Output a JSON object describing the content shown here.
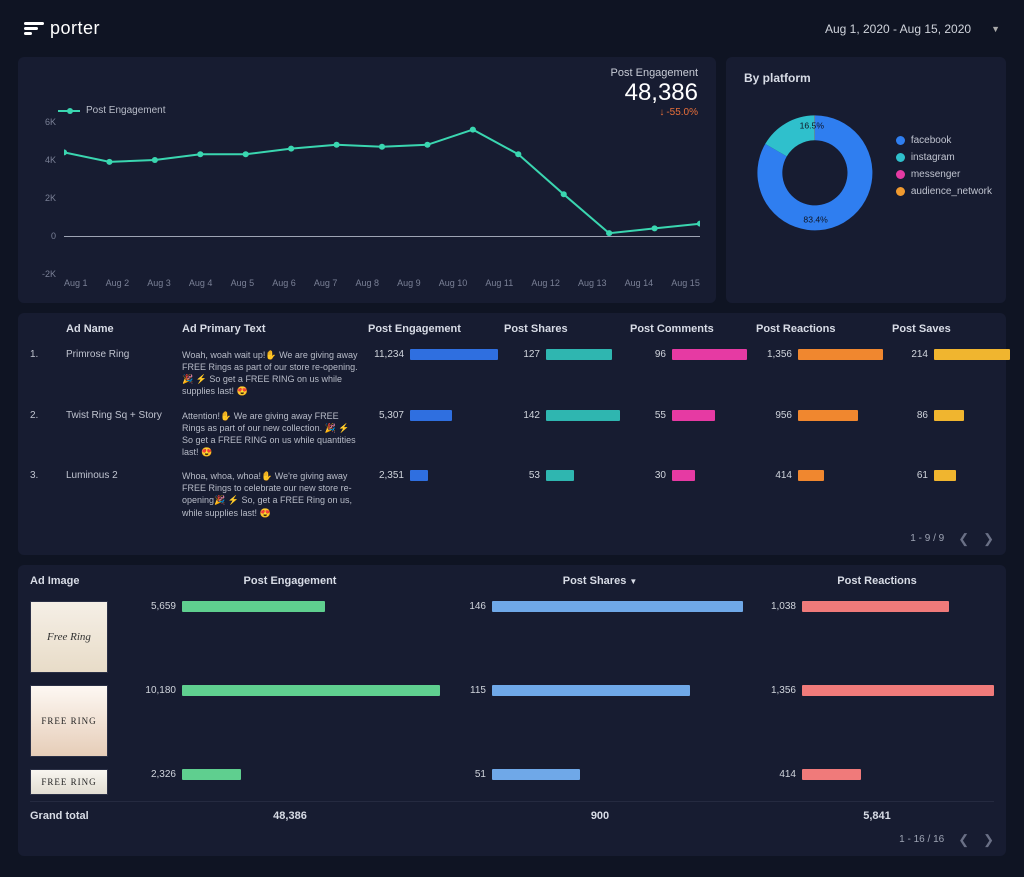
{
  "brand": {
    "name": "porter"
  },
  "header": {
    "date_range": "Aug 1, 2020 - Aug 15, 2020"
  },
  "colors": {
    "panel_bg": "#171c31",
    "body_bg": "#0f1423",
    "text_muted": "#7a8096",
    "line_series": "#3ad6b0",
    "delta_down": "#e86f3a"
  },
  "engagement_chart": {
    "type": "line",
    "title": "Post Engagement",
    "legend_label": "Post Engagement",
    "value": "48,386",
    "delta": "-55.0%",
    "delta_direction": "down",
    "y_ticks": [
      "-2K",
      "0",
      "2K",
      "4K",
      "6K"
    ],
    "y_min": -2000,
    "y_max": 6000,
    "x_labels": [
      "Aug 1",
      "Aug 2",
      "Aug 3",
      "Aug 4",
      "Aug 5",
      "Aug 6",
      "Aug 7",
      "Aug 8",
      "Aug 9",
      "Aug 10",
      "Aug 11",
      "Aug 12",
      "Aug 13",
      "Aug 14",
      "Aug 15"
    ],
    "values": [
      4400,
      3900,
      4000,
      4300,
      4300,
      4600,
      4800,
      4700,
      4800,
      5600,
      4300,
      2200,
      150,
      400,
      650
    ],
    "line_color": "#3ad6b0",
    "marker_color": "#3ad6b0",
    "zero_line_color": "#9ea4b4"
  },
  "donut": {
    "title": "By platform",
    "type": "donut",
    "inner_pct_labels": [
      "16.5%",
      "83.4%"
    ],
    "segments": [
      {
        "label": "facebook",
        "value": 83.4,
        "color": "#2f7ef0"
      },
      {
        "label": "instagram",
        "value": 16.5,
        "color": "#2fc0cc"
      },
      {
        "label": "messenger",
        "value": 0.06,
        "color": "#e63aa3"
      },
      {
        "label": "audience_network",
        "value": 0.04,
        "color": "#f09a2f"
      }
    ]
  },
  "table1": {
    "headers": [
      "",
      "Ad Name",
      "Ad Primary Text",
      "Post Engagement",
      "Post Shares",
      "Post Comments",
      "Post Reactions",
      "Post Saves"
    ],
    "bar_colors": {
      "engagement": "#2f6fe0",
      "shares": "#2fb6b0",
      "comments": "#e63aa3",
      "reactions": "#f0872f",
      "saves": "#f0b52f"
    },
    "max": {
      "engagement": 11234,
      "shares": 150,
      "comments": 100,
      "reactions": 1400,
      "saves": 220
    },
    "rows": [
      {
        "idx": "1.",
        "name": "Primrose Ring",
        "text": "Woah, woah wait up!✋ We are giving away FREE Rings as part of our store re-opening. 🎉 ⚡ So get a FREE RING on us while supplies last! 😍",
        "engagement": 11234,
        "shares": 127,
        "comments": 96,
        "reactions": 1356,
        "saves": 214
      },
      {
        "idx": "2.",
        "name": "Twist Ring Sq + Story",
        "text": "Attention!✋ We are giving away FREE Rings as part of our new collection. 🎉 ⚡ So get a FREE RING on us while quantities last! 😍",
        "engagement": 5307,
        "shares": 142,
        "comments": 55,
        "reactions": 956,
        "saves": 86
      },
      {
        "idx": "3.",
        "name": "Luminous 2",
        "text": "Whoa, whoa, whoa!✋ We're giving away FREE Rings to celebrate our new store re-opening🎉 ⚡ So, get a FREE Ring on us, while supplies last! 😍",
        "engagement": 2351,
        "shares": 53,
        "comments": 30,
        "reactions": 414,
        "saves": 61
      }
    ],
    "pager": "1 - 9 / 9"
  },
  "table2": {
    "headers": [
      "Ad Image",
      "Post Engagement",
      "Post Shares",
      "Post Reactions"
    ],
    "sort_col": 2,
    "bar_colors": {
      "engagement": "#5fcf8f",
      "shares": "#6fa8e8",
      "reactions": "#f07a7a"
    },
    "max": {
      "engagement": 10180,
      "shares": 150,
      "reactions": 1356
    },
    "rows": [
      {
        "img_text": "Free Ring",
        "engagement": 5659,
        "shares": 146,
        "reactions": 1038
      },
      {
        "img_text": "FREE RING",
        "engagement": 10180,
        "shares": 115,
        "reactions": 1356
      },
      {
        "img_text": "FREE RING",
        "engagement": 2326,
        "shares": 51,
        "reactions": 414
      }
    ],
    "grand": {
      "label": "Grand total",
      "engagement": "48,386",
      "shares": "900",
      "reactions": "5,841"
    },
    "pager": "1 - 16 / 16"
  }
}
